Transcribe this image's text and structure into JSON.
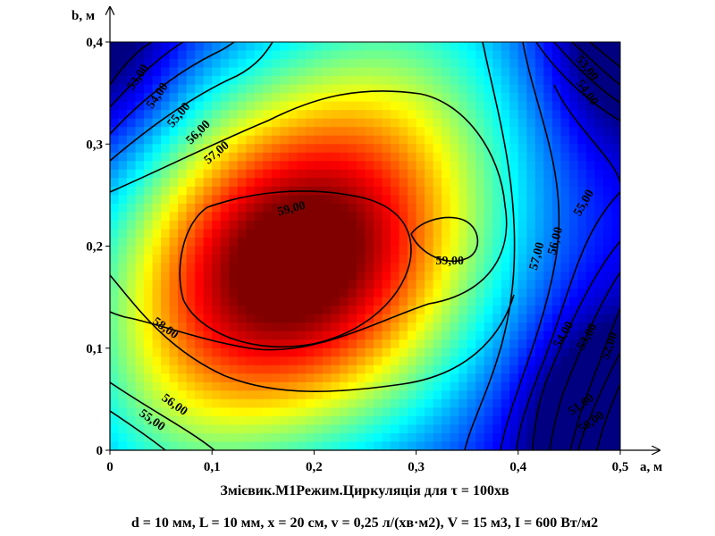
{
  "chart_data": {
    "type": "heatmap",
    "title": "Змієвик.М1Режим.Циркуляція для τ = 100хв",
    "subtitle": "d = 10 мм, L = 10 мм, x = 20 см, v = 0,25 л/(хв·м2), V = 15 м3, I = 600 Вт/м2",
    "xlabel": "a, м",
    "ylabel": "b, м",
    "xlim": [
      0,
      0.5
    ],
    "ylim": [
      0,
      0.4
    ],
    "x_tick_labels": [
      "0",
      "0,1",
      "0,2",
      "0,3",
      "0,4",
      "0,5"
    ],
    "y_tick_labels": [
      "0",
      "0,1",
      "0,2",
      "0,3",
      "0,4"
    ],
    "colormap": "jet",
    "contour_levels": [
      50,
      51,
      52,
      53,
      54,
      55,
      56,
      57,
      58,
      59
    ],
    "contour_labels": [
      {
        "text": "53,00",
        "x": 0.028,
        "y": 0.365,
        "angle": -55
      },
      {
        "text": "54,00",
        "x": 0.047,
        "y": 0.347,
        "angle": -55
      },
      {
        "text": "55,00",
        "x": 0.068,
        "y": 0.328,
        "angle": -50
      },
      {
        "text": "56,00",
        "x": 0.087,
        "y": 0.311,
        "angle": -45
      },
      {
        "text": "57,00",
        "x": 0.105,
        "y": 0.291,
        "angle": -40
      },
      {
        "text": "59,00",
        "x": 0.178,
        "y": 0.236,
        "angle": -15
      },
      {
        "text": "59,00",
        "x": 0.333,
        "y": 0.185,
        "angle": 0
      },
      {
        "text": "58,00",
        "x": 0.054,
        "y": 0.119,
        "angle": 35
      },
      {
        "text": "56,00",
        "x": 0.063,
        "y": 0.044,
        "angle": 35
      },
      {
        "text": "55,00",
        "x": 0.041,
        "y": 0.029,
        "angle": 35
      },
      {
        "text": "53,00",
        "x": 0.467,
        "y": 0.374,
        "angle": 50
      },
      {
        "text": "54,00",
        "x": 0.467,
        "y": 0.35,
        "angle": 55
      },
      {
        "text": "55,00",
        "x": 0.465,
        "y": 0.242,
        "angle": -60
      },
      {
        "text": "57,00",
        "x": 0.419,
        "y": 0.19,
        "angle": -75
      },
      {
        "text": "56,00",
        "x": 0.437,
        "y": 0.205,
        "angle": -75
      },
      {
        "text": "54,00",
        "x": 0.445,
        "y": 0.113,
        "angle": -60
      },
      {
        "text": "53,00",
        "x": 0.468,
        "y": 0.111,
        "angle": -60
      },
      {
        "text": "52,00",
        "x": 0.49,
        "y": 0.102,
        "angle": -70
      },
      {
        "text": "51,00",
        "x": 0.462,
        "y": 0.044,
        "angle": -35
      },
      {
        "text": "50,00",
        "x": 0.472,
        "y": 0.027,
        "angle": -35
      }
    ]
  }
}
